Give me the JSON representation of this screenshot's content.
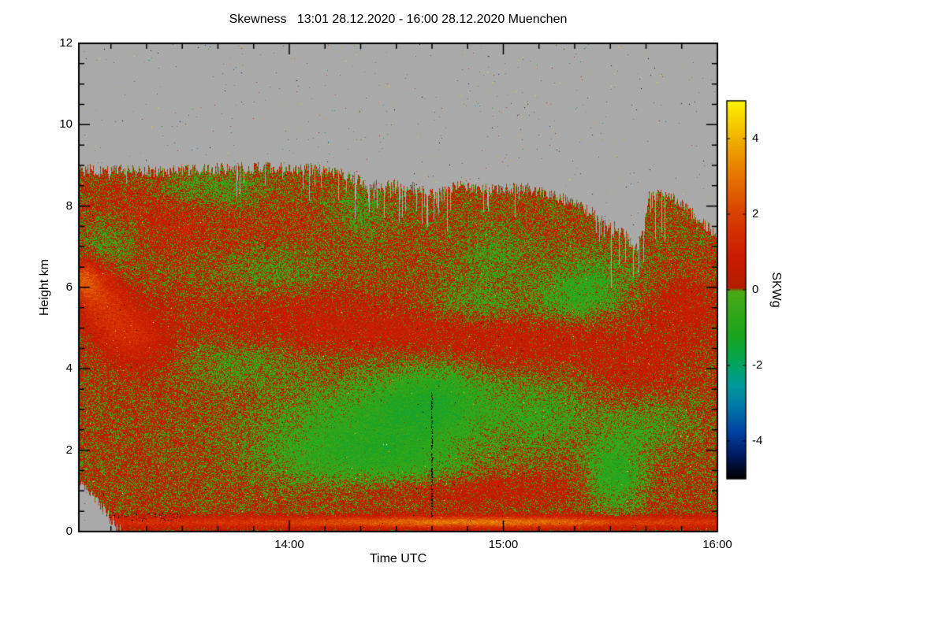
{
  "chart_data": {
    "type": "heatmap",
    "title": "Skewness   13:01 28.12.2020 - 16:00 28.12.2020 Muenchen",
    "xlabel": "Time UTC",
    "ylabel": "Height km",
    "colorbar_label": "SKWg",
    "x_axis": {
      "start_minute": 781,
      "end_minute": 960,
      "ticks": [
        {
          "minute": 840,
          "label": "14:00"
        },
        {
          "minute": 900,
          "label": "15:00"
        },
        {
          "minute": 960,
          "label": "16:00"
        }
      ],
      "minor_step_minutes": 10
    },
    "y_axis": {
      "min": 0,
      "max": 12,
      "ticks": [
        {
          "value": 0,
          "label": "0"
        },
        {
          "value": 2,
          "label": "2"
        },
        {
          "value": 4,
          "label": "4"
        },
        {
          "value": 6,
          "label": "6"
        },
        {
          "value": 8,
          "label": "8"
        },
        {
          "value": 10,
          "label": "10"
        },
        {
          "value": 12,
          "label": "12"
        }
      ],
      "minor_step": 0.5
    },
    "colorbar": {
      "min": -5,
      "max": 5,
      "ticks": [
        {
          "value": 4,
          "label": "4"
        },
        {
          "value": 2,
          "label": "2"
        },
        {
          "value": 0,
          "label": "0"
        },
        {
          "value": -2,
          "label": "-2"
        },
        {
          "value": -4,
          "label": "-4"
        }
      ]
    },
    "colors": {
      "background": "#ffffff",
      "no_data": "#a9a9a9",
      "frame": "#000000",
      "text": "#000000"
    },
    "colormap_stops": [
      [
        -5.0,
        "#000000"
      ],
      [
        -4.4,
        "#001a60"
      ],
      [
        -3.8,
        "#0040a0"
      ],
      [
        -3.1,
        "#0078a8"
      ],
      [
        -2.55,
        "#00989a"
      ],
      [
        -2.0,
        "#00a45e"
      ],
      [
        -1.2,
        "#1ca41c"
      ],
      [
        -0.04,
        "#4aa816"
      ],
      [
        0.04,
        "#b01c00"
      ],
      [
        0.9,
        "#cc1c00"
      ],
      [
        2.0,
        "#d84000"
      ],
      [
        2.9,
        "#e47000"
      ],
      [
        3.8,
        "#eea400"
      ],
      [
        4.4,
        "#f6cc00"
      ],
      [
        5.0,
        "#fcf400"
      ]
    ],
    "field": {
      "seed": 20201228,
      "bias": 0.2,
      "noise_amp": 1.35,
      "noise_amp2": 0.6,
      "post_noise": 0.9,
      "streak_alpha": 0.65,
      "upper_noise_boost_km": 6.2,
      "upper_noise_factor": 1.3,
      "cloud_top_profile": {
        "t": [
          0.0,
          0.1,
          0.2,
          0.3,
          0.38,
          0.42,
          0.45,
          0.5,
          0.55,
          0.6,
          0.65,
          0.7,
          0.74,
          0.78,
          0.82,
          0.855,
          0.875,
          0.895,
          0.92,
          0.95,
          0.975,
          1.0
        ],
        "km": [
          8.9,
          8.85,
          8.9,
          8.95,
          8.9,
          8.75,
          8.55,
          8.5,
          8.4,
          8.5,
          8.4,
          8.45,
          8.3,
          8.05,
          7.7,
          7.3,
          6.95,
          8.3,
          8.25,
          8.0,
          7.6,
          7.3
        ]
      },
      "gap_regions": [
        [
          0.43,
          0.58
        ],
        [
          0.8,
          0.92
        ]
      ],
      "gray_bottom": {
        "t_end": 0.065,
        "km_max": 1.25
      },
      "surface_band": {
        "center_km": 0.22,
        "width_km": 0.14,
        "base_amp": 1.2,
        "peak_amp": 1.6,
        "peak_t": 0.62,
        "peak_width_t": 0.25
      },
      "blobs": [
        [
          0.47,
          2.6,
          0.16,
          1.1,
          -0.85
        ],
        [
          0.56,
          3.3,
          0.09,
          0.9,
          -0.9
        ],
        [
          0.38,
          1.8,
          0.12,
          0.8,
          -0.5
        ],
        [
          0.52,
          1.6,
          0.1,
          0.6,
          -0.5
        ],
        [
          0.73,
          2.9,
          0.08,
          0.9,
          -0.6
        ],
        [
          0.8,
          6.2,
          0.07,
          0.7,
          -0.7
        ],
        [
          0.77,
          5.6,
          0.06,
          0.5,
          -0.5
        ],
        [
          0.84,
          1.4,
          0.045,
          0.9,
          -1.1
        ],
        [
          0.9,
          2.7,
          0.07,
          0.7,
          -0.5
        ],
        [
          0.2,
          8.4,
          0.09,
          0.5,
          -0.7
        ],
        [
          0.05,
          7.2,
          0.05,
          0.6,
          -0.6
        ],
        [
          0.3,
          6.6,
          0.1,
          1.0,
          -0.55
        ],
        [
          0.62,
          5.6,
          0.07,
          0.7,
          -0.5
        ],
        [
          0.25,
          4.1,
          0.1,
          0.6,
          -0.4
        ],
        [
          0.65,
          6.9,
          0.06,
          0.6,
          -0.5
        ],
        [
          0.44,
          7.9,
          0.05,
          0.7,
          -0.5
        ],
        [
          0.005,
          6.2,
          0.025,
          0.45,
          1.8
        ],
        [
          0.03,
          5.8,
          0.035,
          0.6,
          1.2
        ],
        [
          0.06,
          5.1,
          0.045,
          0.7,
          0.9
        ],
        [
          0.1,
          4.6,
          0.05,
          0.8,
          0.6
        ],
        [
          0.5,
          4.9,
          0.28,
          0.5,
          0.55
        ],
        [
          0.33,
          5.6,
          0.15,
          0.5,
          0.4
        ],
        [
          0.12,
          7.8,
          0.1,
          0.9,
          0.5
        ],
        [
          0.3,
          7.3,
          0.12,
          0.8,
          0.45
        ],
        [
          0.7,
          4.4,
          0.15,
          0.6,
          0.35
        ],
        [
          0.88,
          4.0,
          0.08,
          0.8,
          0.4
        ],
        [
          0.6,
          1.0,
          0.2,
          0.4,
          0.5
        ],
        [
          0.95,
          5.5,
          0.05,
          0.8,
          0.5
        ]
      ],
      "dark_column": {
        "t": 0.553,
        "km0": 0.3,
        "km1": 3.4
      },
      "left_speck_band": {
        "t1": 0.16,
        "km0": 0.25,
        "km1": 0.45,
        "prob": 0.05
      },
      "speckle_gray_prob": 0.003,
      "extreme_low_prob": 0.0008,
      "extreme_high_prob": 0.0008,
      "white_dot_prob": 0.00012
    }
  }
}
